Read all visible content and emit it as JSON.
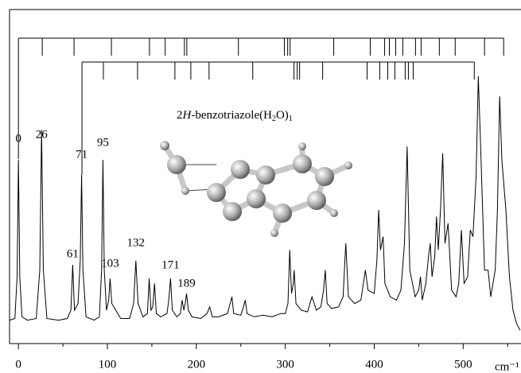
{
  "chart_data": {
    "type": "line",
    "annotation": [
      "2",
      "H",
      "-benzotriazole(H",
      "2",
      "O)",
      "1"
    ],
    "xlabel": "cm⁻¹",
    "xlim": [
      -10,
      565
    ],
    "ylim": [
      0,
      100
    ],
    "xticks": [
      0,
      100,
      200,
      300,
      400,
      500
    ],
    "xminorticks": [
      50,
      150,
      250,
      350,
      450,
      550
    ],
    "peak_labels": [
      0,
      26,
      71,
      95,
      61,
      103,
      132,
      171,
      189
    ],
    "stick_rows": [
      {
        "values": [
          0,
          26.8,
          62.5,
          104.5,
          147.3,
          165,
          186.6,
          189.3,
          247.3,
          299,
          302.7,
          305.4,
          354.5,
          395.5,
          411.6,
          417,
          424.1,
          432.1,
          446.4,
          452.7,
          473.2,
          491,
          524,
          545.5
        ]
      },
      {
        "values": [
          71.4,
          95.5,
          133.9,
          175.9,
          193.8,
          214.3,
          263.4,
          309.8,
          313.4,
          316.1,
          342,
          392,
          406.2,
          415.2,
          423.2,
          434.8,
          438.4,
          443.8,
          512.5
        ]
      }
    ],
    "x": [
      -10,
      -4,
      -1.5,
      0,
      1.5,
      4,
      10,
      20,
      24,
      26,
      28,
      32,
      45,
      55,
      59,
      61,
      63,
      67,
      69.5,
      71,
      72.5,
      76,
      85,
      91,
      93.5,
      95,
      96.5,
      99,
      101.5,
      103,
      105,
      115,
      125,
      129.5,
      132,
      134.5,
      140,
      145,
      147,
      149,
      151,
      153,
      155,
      160,
      167,
      169,
      171,
      173,
      178,
      182,
      184,
      186,
      187.5,
      189,
      191,
      195,
      205,
      212,
      215,
      218,
      225,
      235,
      238,
      240,
      242,
      250,
      253,
      255,
      257,
      265,
      275,
      285,
      295,
      300,
      303,
      305,
      307,
      309,
      310,
      312,
      318,
      325,
      330,
      335,
      340,
      343,
      345,
      347,
      352,
      360,
      365,
      368,
      371,
      378,
      385,
      390,
      393,
      400,
      403,
      405,
      407,
      410,
      412,
      418,
      425,
      430,
      434,
      437,
      440,
      446,
      450,
      452,
      454,
      458,
      461,
      463,
      465,
      468,
      470,
      472,
      474.5,
      477,
      479.5,
      483,
      487,
      492,
      495,
      498,
      501,
      505,
      508,
      511,
      514.5,
      517,
      519.5,
      524,
      528,
      531,
      536,
      538.5,
      541,
      543.5,
      548,
      552,
      556,
      560,
      564
    ],
    "series": [
      {
        "color": "#000000",
        "values": [
          7,
          7.5,
          20,
          55,
          20,
          8,
          7,
          7.5,
          22,
          64,
          22,
          7.5,
          7,
          7.5,
          10,
          23.6,
          10,
          12,
          25,
          50.5,
          22,
          8,
          7,
          8,
          22,
          55,
          22,
          10,
          13,
          19.5,
          12,
          7.5,
          7.5,
          12,
          24.8,
          12,
          8,
          9,
          19.5,
          10,
          11,
          18,
          9,
          8,
          9,
          13,
          19.5,
          10,
          8,
          9,
          13,
          10,
          12,
          15,
          10,
          8,
          7.5,
          9,
          11,
          8,
          8,
          9,
          12,
          14,
          9,
          8.5,
          11,
          13,
          9,
          8,
          8.5,
          8,
          9,
          9,
          12,
          28,
          15,
          18,
          22,
          12,
          10,
          9.5,
          14,
          10,
          11,
          16,
          22,
          12,
          10.5,
          11,
          14,
          30,
          14,
          12,
          13,
          22,
          16,
          15,
          25,
          40,
          28,
          32,
          18,
          14,
          13,
          16,
          30,
          59,
          22,
          14,
          16,
          20,
          13,
          18,
          26,
          30,
          20,
          26,
          38,
          28,
          40,
          57,
          30,
          36,
          16,
          14,
          18,
          34,
          18,
          20,
          34,
          32,
          50,
          80,
          60,
          22,
          22,
          14,
          22,
          40,
          74,
          55,
          40,
          20,
          10,
          6,
          4
        ]
      }
    ]
  }
}
